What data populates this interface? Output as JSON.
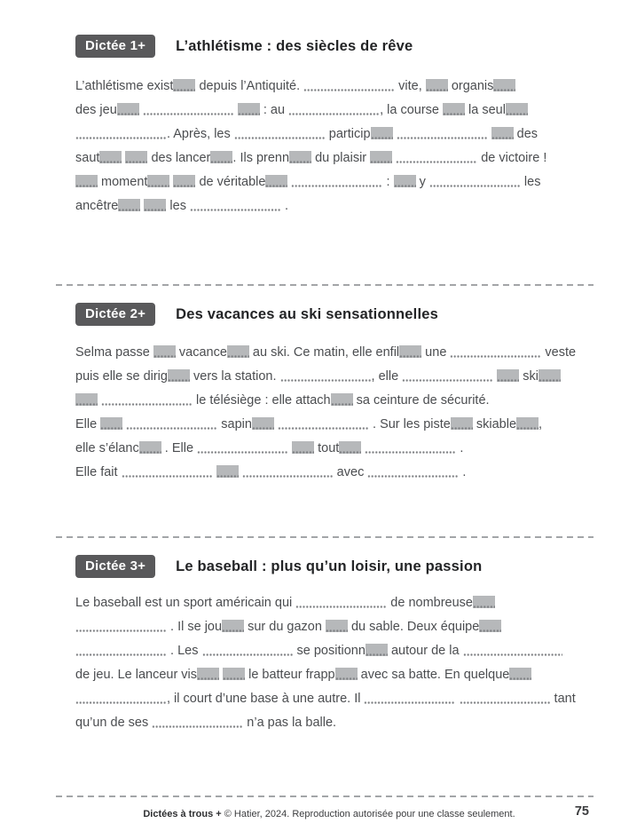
{
  "colors": {
    "badge_bg": "#59595b",
    "gap_bg": "#b6b8ba",
    "dot": "#7d7f82",
    "divider": "#a3a5a8",
    "body_text": "#4b4d50",
    "title_text": "#232426"
  },
  "sections": [
    {
      "badge": "Dictée 1+",
      "title": "L’athlétisme : des siècles de rêve",
      "lines": [
        [
          {
            "t": "x",
            "v": "L’athlétisme exist"
          },
          {
            "t": "g"
          },
          {
            "t": "x",
            "v": " depuis l’Antiquité. "
          },
          {
            "t": "d"
          },
          {
            "t": "x",
            "v": " vite, "
          },
          {
            "t": "g"
          },
          {
            "t": "x",
            "v": " organis"
          },
          {
            "t": "g"
          }
        ],
        [
          {
            "t": "x",
            "v": "des jeu"
          },
          {
            "t": "g"
          },
          {
            "t": "x",
            "v": " "
          },
          {
            "t": "d"
          },
          {
            "t": "x",
            "v": " "
          },
          {
            "t": "g"
          },
          {
            "t": "x",
            "v": " : au "
          },
          {
            "t": "d"
          },
          {
            "t": "x",
            "v": ", la course "
          },
          {
            "t": "g"
          },
          {
            "t": "x",
            "v": " la seul"
          },
          {
            "t": "g"
          }
        ],
        [
          {
            "t": "d"
          },
          {
            "t": "x",
            "v": ". Après, les "
          },
          {
            "t": "d"
          },
          {
            "t": "x",
            "v": " particip"
          },
          {
            "t": "g"
          },
          {
            "t": "x",
            "v": " "
          },
          {
            "t": "d"
          },
          {
            "t": "x",
            "v": " "
          },
          {
            "t": "g"
          },
          {
            "t": "x",
            "v": " des"
          }
        ],
        [
          {
            "t": "x",
            "v": "saut"
          },
          {
            "t": "g"
          },
          {
            "t": "x",
            "v": " "
          },
          {
            "t": "g"
          },
          {
            "t": "x",
            "v": " des lancer"
          },
          {
            "t": "g"
          },
          {
            "t": "x",
            "v": ". Ils prenn"
          },
          {
            "t": "g"
          },
          {
            "t": "x",
            "v": " du plaisir "
          },
          {
            "t": "g"
          },
          {
            "t": "x",
            "v": " "
          },
          {
            "t": "d",
            "w": 92
          },
          {
            "t": "x",
            "v": " de victoire !"
          }
        ],
        [
          {
            "t": "g"
          },
          {
            "t": "x",
            "v": " moment"
          },
          {
            "t": "g"
          },
          {
            "t": "x",
            "v": " "
          },
          {
            "t": "g"
          },
          {
            "t": "x",
            "v": " de véritable"
          },
          {
            "t": "g"
          },
          {
            "t": "x",
            "v": " "
          },
          {
            "t": "d"
          },
          {
            "t": "x",
            "v": " : "
          },
          {
            "t": "g"
          },
          {
            "t": "x",
            "v": " y "
          },
          {
            "t": "d"
          },
          {
            "t": "x",
            "v": " les"
          }
        ],
        [
          {
            "t": "x",
            "v": "ancêtre"
          },
          {
            "t": "g"
          },
          {
            "t": "x",
            "v": " "
          },
          {
            "t": "g"
          },
          {
            "t": "x",
            "v": " les "
          },
          {
            "t": "d"
          },
          {
            "t": "x",
            "v": " ."
          }
        ]
      ]
    },
    {
      "badge": "Dictée 2+",
      "title": "Des vacances au ski sensationnelles",
      "lines": [
        [
          {
            "t": "x",
            "v": "Selma passe "
          },
          {
            "t": "g"
          },
          {
            "t": "x",
            "v": " vacance"
          },
          {
            "t": "g"
          },
          {
            "t": "x",
            "v": " au ski. Ce matin, elle enfil"
          },
          {
            "t": "g"
          },
          {
            "t": "x",
            "v": " une "
          },
          {
            "t": "d"
          },
          {
            "t": "x",
            "v": " veste"
          }
        ],
        [
          {
            "t": "x",
            "v": "puis elle se dirig"
          },
          {
            "t": "g"
          },
          {
            "t": "x",
            "v": " vers la station. "
          },
          {
            "t": "d"
          },
          {
            "t": "x",
            "v": ", elle "
          },
          {
            "t": "d"
          },
          {
            "t": "x",
            "v": " "
          },
          {
            "t": "g"
          },
          {
            "t": "x",
            "v": " ski"
          },
          {
            "t": "g"
          }
        ],
        [
          {
            "t": "g"
          },
          {
            "t": "x",
            "v": " "
          },
          {
            "t": "d"
          },
          {
            "t": "x",
            "v": " le télésiège : elle attach"
          },
          {
            "t": "g"
          },
          {
            "t": "x",
            "v": " sa ceinture de sécurité."
          }
        ],
        [
          {
            "t": "x",
            "v": "Elle "
          },
          {
            "t": "g"
          },
          {
            "t": "x",
            "v": " "
          },
          {
            "t": "d"
          },
          {
            "t": "x",
            "v": " sapin"
          },
          {
            "t": "g"
          },
          {
            "t": "x",
            "v": " "
          },
          {
            "t": "d"
          },
          {
            "t": "x",
            "v": " . Sur les piste"
          },
          {
            "t": "g"
          },
          {
            "t": "x",
            "v": " skiable"
          },
          {
            "t": "g"
          },
          {
            "t": "x",
            "v": ","
          }
        ],
        [
          {
            "t": "x",
            "v": "elle s’élanc"
          },
          {
            "t": "g"
          },
          {
            "t": "x",
            "v": " . Elle "
          },
          {
            "t": "d"
          },
          {
            "t": "x",
            "v": " "
          },
          {
            "t": "g"
          },
          {
            "t": "x",
            "v": " tout"
          },
          {
            "t": "g"
          },
          {
            "t": "x",
            "v": " "
          },
          {
            "t": "d"
          },
          {
            "t": "x",
            "v": " ."
          }
        ],
        [
          {
            "t": "x",
            "v": "Elle fait "
          },
          {
            "t": "d"
          },
          {
            "t": "x",
            "v": " "
          },
          {
            "t": "g"
          },
          {
            "t": "x",
            "v": " "
          },
          {
            "t": "d"
          },
          {
            "t": "x",
            "v": " avec "
          },
          {
            "t": "d"
          },
          {
            "t": "x",
            "v": " ."
          }
        ]
      ]
    },
    {
      "badge": "Dictée 3+",
      "title": "Le baseball : plus qu’un loisir, une passion",
      "lines": [
        [
          {
            "t": "x",
            "v": "Le baseball est un sport américain qui "
          },
          {
            "t": "d"
          },
          {
            "t": "x",
            "v": " de nombreuse"
          },
          {
            "t": "g"
          }
        ],
        [
          {
            "t": "d"
          },
          {
            "t": "x",
            "v": " . Il se jou"
          },
          {
            "t": "g"
          },
          {
            "t": "x",
            "v": " sur du gazon "
          },
          {
            "t": "g"
          },
          {
            "t": "x",
            "v": " du sable. Deux équipe"
          },
          {
            "t": "g"
          }
        ],
        [
          {
            "t": "d"
          },
          {
            "t": "x",
            "v": " . Les "
          },
          {
            "t": "d"
          },
          {
            "t": "x",
            "v": " se positionn"
          },
          {
            "t": "g"
          },
          {
            "t": "x",
            "v": " autour de la "
          },
          {
            "t": "d",
            "w": 112
          }
        ],
        [
          {
            "t": "x",
            "v": "de jeu. Le lanceur vis"
          },
          {
            "t": "g"
          },
          {
            "t": "x",
            "v": " "
          },
          {
            "t": "g"
          },
          {
            "t": "x",
            "v": " le batteur frapp"
          },
          {
            "t": "g"
          },
          {
            "t": "x",
            "v": " avec sa batte. En quelque"
          },
          {
            "t": "g"
          }
        ],
        [
          {
            "t": "d"
          },
          {
            "t": "x",
            "v": ", il court d’une base à une autre. Il "
          },
          {
            "t": "d"
          },
          {
            "t": "x",
            "v": " "
          },
          {
            "t": "d"
          },
          {
            "t": "x",
            "v": " tant"
          }
        ],
        [
          {
            "t": "x",
            "v": "qu’un de ses "
          },
          {
            "t": "d"
          },
          {
            "t": "x",
            "v": " n’a pas la balle."
          }
        ]
      ]
    }
  ],
  "footer": {
    "series": "Dictées à trous +",
    "copyright": "© Hatier, 2024. Reproduction autorisée pour une classe seulement.",
    "page_number": "75"
  }
}
